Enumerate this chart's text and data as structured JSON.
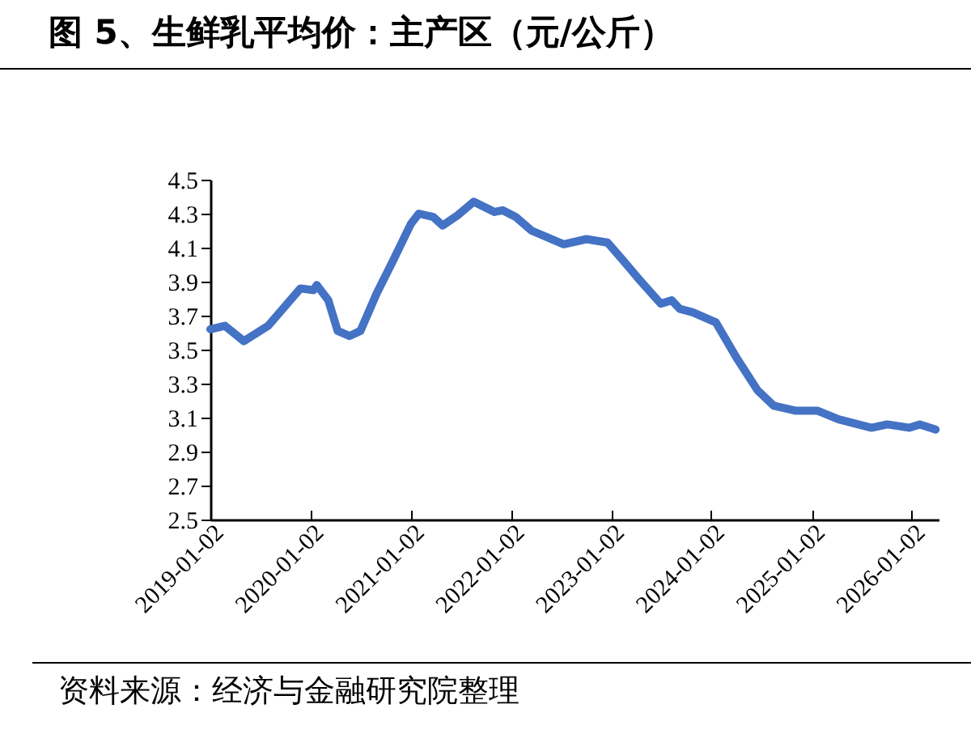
{
  "chart_data": {
    "type": "line",
    "title": "图 5、生鲜乳平均价：主产区（元/公斤）",
    "annotations": [
      "资料来源：经济与金融研究院整理"
    ],
    "x": [
      "2019-01-02",
      "2019-02-24",
      "2019-05-04",
      "2019-08-01",
      "2019-11-26",
      "2020-01-13",
      "2020-01-25",
      "2020-03-07",
      "2020-04-10",
      "2020-05-23",
      "2020-07-02",
      "2020-08-30",
      "2020-10-28",
      "2021-01-02",
      "2021-01-31",
      "2021-03-25",
      "2021-04-28",
      "2021-06-21",
      "2021-08-19",
      "2021-11-03",
      "2021-12-02",
      "2022-01-20",
      "2022-03-18",
      "2022-07-13",
      "2022-10-04",
      "2022-12-20",
      "2023-02-17",
      "2023-04-16",
      "2023-07-02",
      "2023-08-11",
      "2023-09-09",
      "2023-10-26",
      "2024-01-19",
      "2024-04-04",
      "2024-06-19",
      "2024-08-17",
      "2024-11-06",
      "2025-01-24",
      "2025-04-10",
      "2025-08-08",
      "2025-10-05",
      "2025-12-25",
      "2026-01-31",
      "2026-03-30"
    ],
    "series": [
      {
        "color": "#4472c4",
        "values": [
          3.62,
          3.64,
          3.55,
          3.64,
          3.86,
          3.85,
          3.88,
          3.79,
          3.61,
          3.58,
          3.61,
          3.83,
          4.02,
          4.24,
          4.3,
          4.28,
          4.23,
          4.29,
          4.37,
          4.31,
          4.32,
          4.28,
          4.2,
          4.12,
          4.15,
          4.13,
          4.02,
          3.91,
          3.77,
          3.79,
          3.74,
          3.72,
          3.66,
          3.45,
          3.26,
          3.17,
          3.14,
          3.14,
          3.09,
          3.04,
          3.06,
          3.04,
          3.06,
          3.03
        ]
      }
    ],
    "xlim": [
      "2019-01-02",
      "2026-04-10"
    ],
    "xticks": [
      {
        "value": "2019-01-02",
        "label": "2019-01-02"
      },
      {
        "value": "2020-01-02",
        "label": "2020-01-02"
      },
      {
        "value": "2021-01-02",
        "label": "2021-01-02"
      },
      {
        "value": "2022-01-02",
        "label": "2022-01-02"
      },
      {
        "value": "2023-01-02",
        "label": "2023-01-02"
      },
      {
        "value": "2024-01-02",
        "label": "2024-01-02"
      },
      {
        "value": "2025-01-02",
        "label": "2025-01-02"
      },
      {
        "value": "2026-01-02",
        "label": "2026-01-02"
      }
    ],
    "ylim": [
      2.5,
      4.5
    ],
    "yticks": [
      2.5,
      2.7,
      2.9,
      3.1,
      3.3,
      3.5,
      3.7,
      3.9,
      4.1,
      4.3,
      4.5
    ],
    "marker": "none",
    "line_style": "solid"
  }
}
